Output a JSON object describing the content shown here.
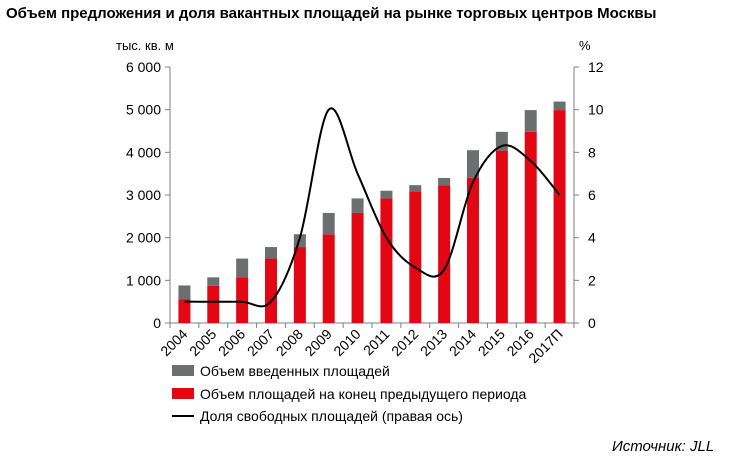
{
  "title": "Объем предложения и доля вакантных площадей на рынке торговых центров Москвы",
  "source": "Источник: JLL",
  "colors": {
    "new_supply": "#6d6e70",
    "existing": "#e30613",
    "vacancy": "#000000",
    "axis": "#808080"
  },
  "chart_data": {
    "type": "bar",
    "stacked": true,
    "categories": [
      "2004",
      "2005",
      "2006",
      "2007",
      "2008",
      "2009",
      "2010",
      "2011",
      "2012",
      "2013",
      "2014",
      "2015",
      "2016",
      "2017П"
    ],
    "left_axis": {
      "unit_label": "тыс. кв. м",
      "ylim": [
        0,
        6000
      ],
      "ticks": [
        0,
        1000,
        2000,
        3000,
        4000,
        5000,
        6000
      ],
      "tick_labels": [
        "0",
        "1 000",
        "2 000",
        "3 000",
        "4 000",
        "5 000",
        "6 000"
      ]
    },
    "right_axis": {
      "unit_label": "%",
      "ylim": [
        0,
        12
      ],
      "ticks": [
        0,
        2,
        4,
        6,
        8,
        10,
        12
      ],
      "tick_labels": [
        "0",
        "2",
        "4",
        "6",
        "8",
        "10",
        "12"
      ]
    },
    "series": [
      {
        "name": "Объем площадей на конец предыдущего периода",
        "kind": "bar",
        "axis": "left",
        "values": [
          550,
          870,
          1070,
          1510,
          1780,
          2080,
          2580,
          2920,
          3080,
          3230,
          3400,
          4040,
          4480,
          4990
        ]
      },
      {
        "name": "Объем введенных площадей",
        "kind": "bar",
        "axis": "left",
        "values": [
          330,
          200,
          440,
          270,
          300,
          500,
          340,
          180,
          150,
          170,
          650,
          440,
          510,
          200
        ]
      },
      {
        "name": "Доля свободных площадей (правая ось)",
        "kind": "line",
        "axis": "right",
        "values": [
          1.0,
          1.0,
          1.0,
          1.0,
          4.0,
          10.0,
          7.0,
          4.0,
          2.6,
          2.5,
          6.6,
          8.3,
          7.6,
          6.0
        ]
      }
    ],
    "legend_order": [
      "Объем введенных площадей",
      "Объем площадей на конец предыдущего периода",
      "Доля свободных площадей (правая ось)"
    ],
    "legend_placement": "bottom",
    "grid": false
  }
}
